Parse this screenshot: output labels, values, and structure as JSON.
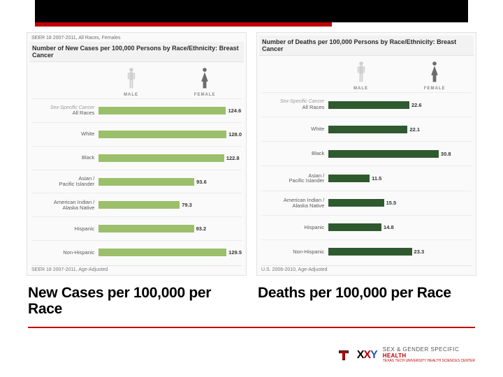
{
  "left_panel": {
    "subhead": "SEER 18 2007-2011, All Races, Females",
    "title": "Number of New Cases per 100,000 Persons by Race/Ethnicity: Breast Cancer",
    "gender_male": "MALE",
    "gender_female": "FEMALE",
    "bar_color": "#9bbf6b",
    "max_value": 140,
    "rows": [
      {
        "label": "All Races",
        "value": 124.6,
        "sublabel": "Sex-Specific Cancer"
      },
      {
        "label": "White",
        "value": 128.0
      },
      {
        "label": "Black",
        "value": 122.8
      },
      {
        "label": "Asian /\nPacific Islander",
        "value": 93.6
      },
      {
        "label": "American Indian /\nAlaska Native",
        "value": 79.3
      },
      {
        "label": "Hispanic",
        "value": 93.2
      },
      {
        "label": "Non-Hispanic",
        "value": 129.5
      }
    ],
    "footnote": "SEER 18 2007-2011, Age-Adjusted"
  },
  "right_panel": {
    "subhead": "",
    "title": "Number of Deaths per 100,000 Persons by Race/Ethnicity: Breast Cancer",
    "gender_male": "MALE",
    "gender_female": "FEMALE",
    "bar_color": "#2f5a2f",
    "max_value": 40,
    "rows": [
      {
        "label": "All Races",
        "value": 22.6,
        "sublabel": "Sex-Specific Cancer"
      },
      {
        "label": "White",
        "value": 22.1
      },
      {
        "label": "Black",
        "value": 30.8
      },
      {
        "label": "Asian /\nPacific Islander",
        "value": 11.5
      },
      {
        "label": "American Indian /\nAlaska Native",
        "value": 15.5
      },
      {
        "label": "Hispanic",
        "value": 14.8
      },
      {
        "label": "Non-Hispanic",
        "value": 23.3
      }
    ],
    "footnote": "U.S. 2006-2010, Age-Adjusted"
  },
  "caption_left": "New Cases per 100,000 per Race",
  "caption_right": "Deaths per 100,000 per Race",
  "logo": {
    "tt": "T",
    "xy": "XXY",
    "line1": "SEX & GENDER SPECIFIC",
    "line2": "HEALTH",
    "line3": "TEXAS TECH UNIVERSITY HEALTH SCIENCES CENTER"
  },
  "colors": {
    "black": "#000000",
    "red": "#c10000",
    "xy_x": "#000000",
    "xy_accent": "#c10000",
    "xy_y": "#2f5aa8",
    "male_fill": "#cfcfcf",
    "female_fill": "#6b6b6b"
  }
}
